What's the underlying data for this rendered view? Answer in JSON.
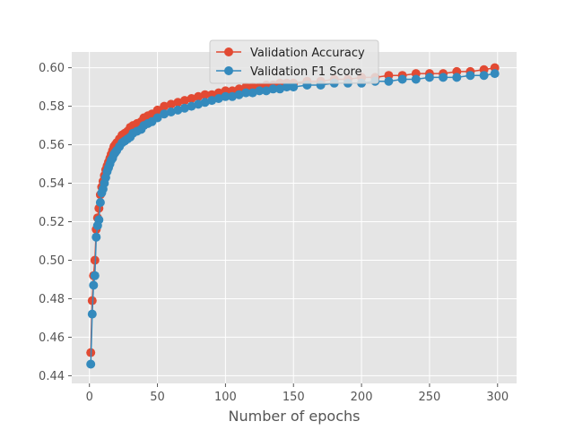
{
  "chart_data": {
    "type": "line",
    "title": "",
    "xlabel": "Number of epochs",
    "ylabel": "",
    "xlim": [
      -13,
      314
    ],
    "ylim": [
      0.436,
      0.6082
    ],
    "x_ticks": [
      0,
      50,
      100,
      150,
      200,
      250,
      300
    ],
    "y_ticks": [
      0.44,
      0.46,
      0.48,
      0.5,
      0.52,
      0.54,
      0.56,
      0.58,
      0.6
    ],
    "y_tick_labels": [
      "0.44",
      "0.46",
      "0.48",
      "0.50",
      "0.52",
      "0.54",
      "0.56",
      "0.58",
      "0.60"
    ],
    "grid": true,
    "legend_position": "top-center",
    "background": "#e5e5e5",
    "series": [
      {
        "name": "Validation Accuracy",
        "color": "#e24a33",
        "x": [
          1,
          2,
          3,
          4,
          5,
          6,
          7,
          8,
          9,
          10,
          11,
          12,
          13,
          14,
          15,
          16,
          17,
          18,
          19,
          20,
          22,
          24,
          26,
          28,
          30,
          32,
          35,
          38,
          40,
          43,
          46,
          50,
          55,
          60,
          65,
          70,
          75,
          80,
          85,
          90,
          95,
          100,
          105,
          110,
          115,
          120,
          125,
          130,
          135,
          140,
          145,
          150,
          160,
          170,
          180,
          190,
          200,
          210,
          220,
          230,
          240,
          250,
          260,
          270,
          280,
          290,
          298
        ],
        "y": [
          0.452,
          0.479,
          0.492,
          0.5,
          0.516,
          0.522,
          0.527,
          0.534,
          0.538,
          0.541,
          0.544,
          0.547,
          0.549,
          0.551,
          0.553,
          0.555,
          0.557,
          0.559,
          0.56,
          0.561,
          0.563,
          0.565,
          0.566,
          0.567,
          0.569,
          0.57,
          0.571,
          0.572,
          0.574,
          0.575,
          0.576,
          0.578,
          0.58,
          0.581,
          0.582,
          0.583,
          0.584,
          0.585,
          0.586,
          0.586,
          0.587,
          0.588,
          0.588,
          0.589,
          0.59,
          0.59,
          0.59,
          0.591,
          0.591,
          0.592,
          0.592,
          0.592,
          0.593,
          0.593,
          0.594,
          0.594,
          0.595,
          0.595,
          0.596,
          0.596,
          0.597,
          0.597,
          0.597,
          0.598,
          0.598,
          0.599,
          0.6
        ]
      },
      {
        "name": "Validation F1 Score",
        "color": "#348abd",
        "x": [
          1,
          2,
          3,
          4,
          5,
          6,
          7,
          8,
          9,
          10,
          11,
          12,
          13,
          14,
          15,
          16,
          17,
          18,
          19,
          20,
          22,
          24,
          26,
          28,
          30,
          32,
          35,
          38,
          40,
          43,
          46,
          50,
          55,
          60,
          65,
          70,
          75,
          80,
          85,
          90,
          95,
          100,
          105,
          110,
          115,
          120,
          125,
          130,
          135,
          140,
          145,
          150,
          160,
          170,
          180,
          190,
          200,
          210,
          220,
          230,
          240,
          250,
          260,
          270,
          280,
          290,
          298
        ],
        "y": [
          0.446,
          0.472,
          0.487,
          0.492,
          0.512,
          0.518,
          0.521,
          0.53,
          0.535,
          0.537,
          0.54,
          0.543,
          0.546,
          0.548,
          0.55,
          0.552,
          0.553,
          0.555,
          0.556,
          0.557,
          0.559,
          0.561,
          0.562,
          0.563,
          0.564,
          0.566,
          0.567,
          0.568,
          0.57,
          0.571,
          0.572,
          0.574,
          0.576,
          0.577,
          0.578,
          0.579,
          0.58,
          0.581,
          0.582,
          0.583,
          0.584,
          0.585,
          0.585,
          0.586,
          0.587,
          0.587,
          0.588,
          0.588,
          0.589,
          0.589,
          0.59,
          0.59,
          0.591,
          0.591,
          0.592,
          0.592,
          0.592,
          0.593,
          0.593,
          0.594,
          0.594,
          0.595,
          0.595,
          0.595,
          0.596,
          0.596,
          0.597
        ]
      }
    ]
  }
}
